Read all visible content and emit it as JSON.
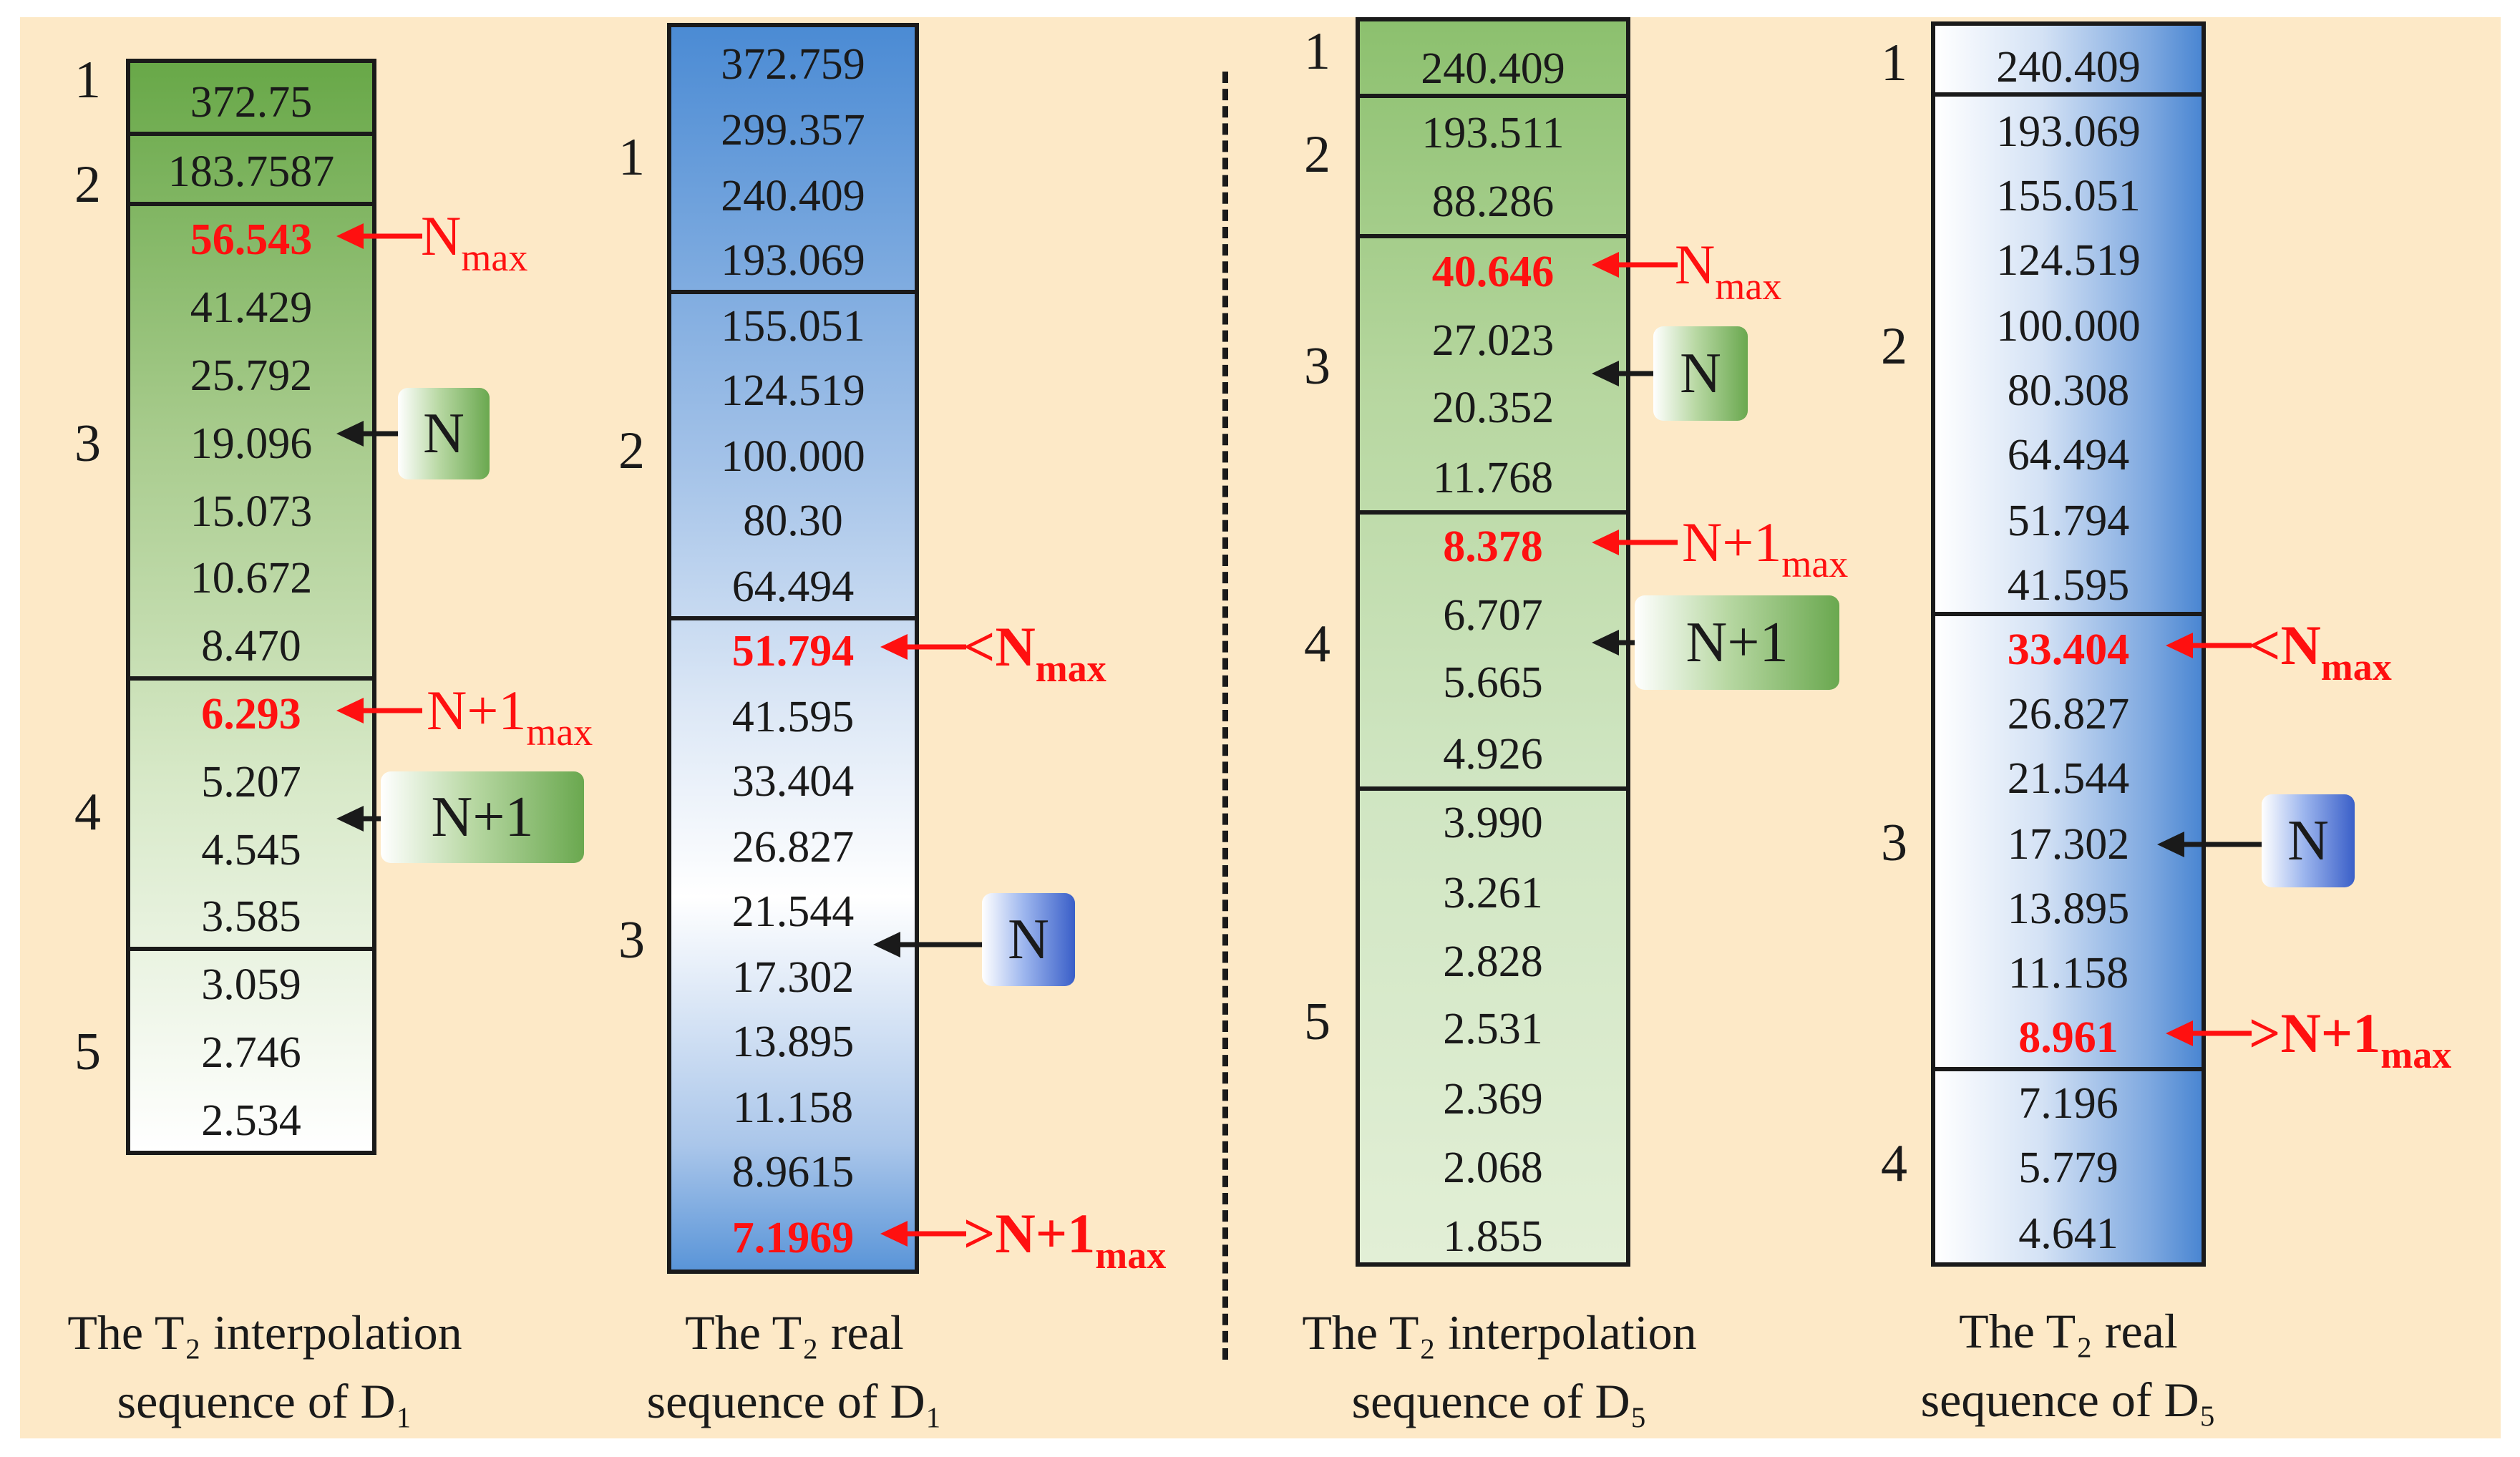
{
  "columns": [
    {
      "id": "d1-interp",
      "caption_line1": "The T₂ interpolation",
      "caption_line2": "sequence of D₁",
      "values": [
        "372.75",
        "183.7587",
        "56.543",
        "41.429",
        "25.792",
        "19.096",
        "15.073",
        "10.672",
        "8.470",
        "6.293",
        "5.207",
        "4.545",
        "3.585",
        "3.059",
        "2.746",
        "2.534"
      ],
      "highlight": [
        "56.543",
        "6.293"
      ],
      "groups": [
        "1",
        "2",
        "3",
        "4",
        "5"
      ]
    },
    {
      "id": "d1-real",
      "caption_line1": "The T₂ real",
      "caption_line2": "sequence of D₁",
      "values": [
        "372.759",
        "299.357",
        "240.409",
        "193.069",
        "155.051",
        "124.519",
        "100.000",
        "80.30",
        "64.494",
        "51.794",
        "41.595",
        "33.404",
        "26.827",
        "21.544",
        "17.302",
        "13.895",
        "11.158",
        "8.9615",
        "7.1969"
      ],
      "highlight": [
        "51.794",
        "7.1969"
      ],
      "groups": [
        "1",
        "2",
        "3"
      ]
    },
    {
      "id": "d5-interp",
      "caption_line1": "The T₂ interpolation",
      "caption_line2": "sequence of D₅",
      "values": [
        "240.409",
        "193.511",
        "88.286",
        "40.646",
        "27.023",
        "20.352",
        "11.768",
        "8.378",
        "6.707",
        "5.665",
        "4.926",
        "3.990",
        "3.261",
        "2.828",
        "2.531",
        "2.369",
        "2.068",
        "1.855"
      ],
      "highlight": [
        "40.646",
        "8.378"
      ],
      "groups": [
        "1",
        "2",
        "3",
        "4",
        "5"
      ]
    },
    {
      "id": "d5-real",
      "caption_line1": "The T₂ real",
      "caption_line2": "sequence of D₅",
      "values": [
        "240.409",
        "193.069",
        "155.051",
        "124.519",
        "100.000",
        "80.308",
        "64.494",
        "51.794",
        "41.595",
        "33.404",
        "26.827",
        "21.544",
        "17.302",
        "13.895",
        "11.158",
        "8.961",
        "7.196",
        "5.779",
        "4.641"
      ],
      "highlight": [
        "33.404",
        "8.961"
      ],
      "groups": [
        "1",
        "2",
        "3",
        "4"
      ]
    }
  ],
  "annotations": {
    "n": "N",
    "n_plus_1": "N+1",
    "n_max_base": "N",
    "n_max_sub": "max",
    "n1_max_base": "N+1",
    "n1_max_sub": "max",
    "lt_n_max_base": "<N",
    "lt_n_max_sub": "max",
    "gt_n1_max_base": ">N+1",
    "gt_n1_max_sub": "max"
  },
  "colors": {
    "highlight": "#ff1010",
    "green": "#6aa84f",
    "blue": "#4a86d2",
    "panel_background": "#fde9c7"
  }
}
